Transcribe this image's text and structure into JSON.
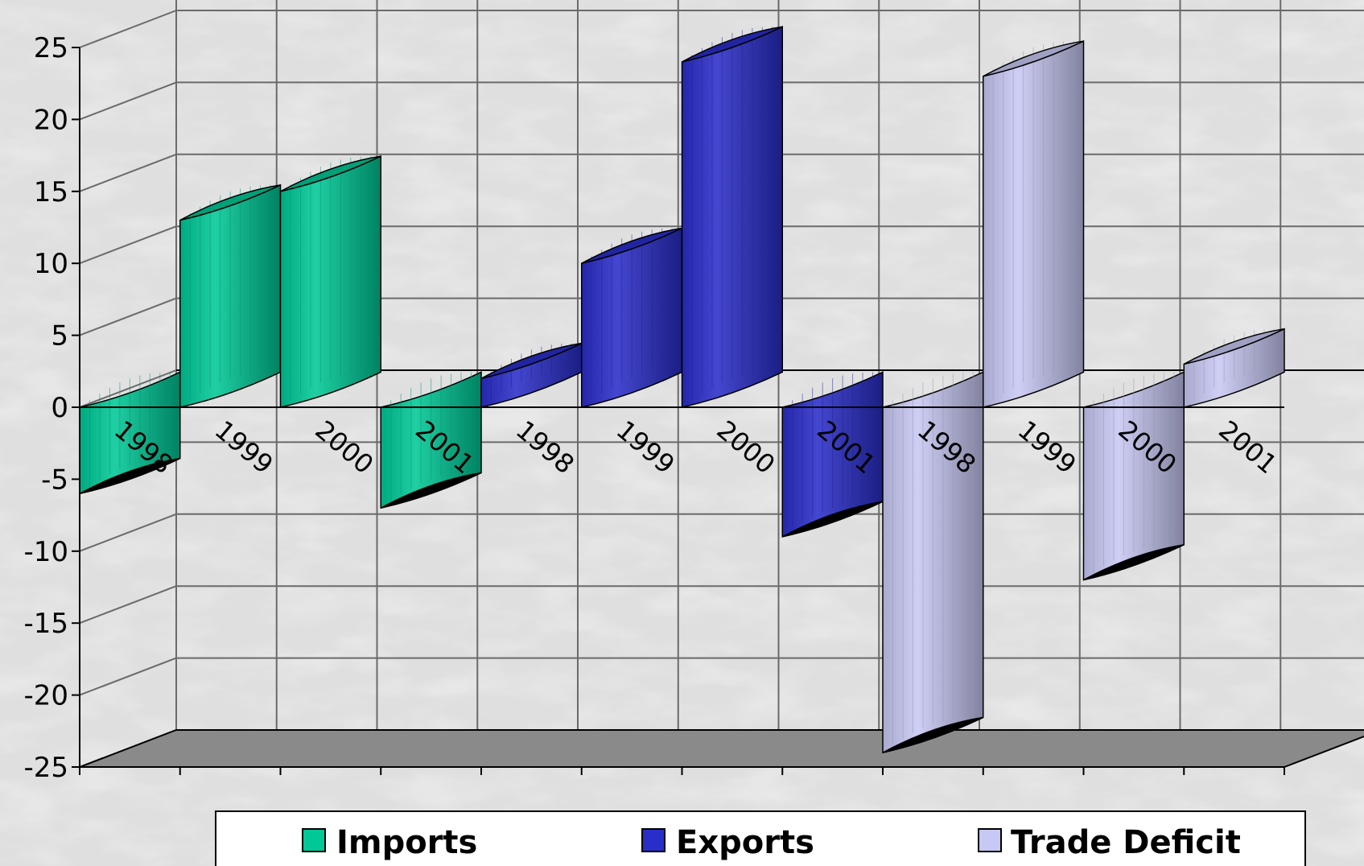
{
  "chart_data": {
    "type": "bar",
    "title": "",
    "xlabel": "",
    "ylabel": "",
    "ylim": [
      -25,
      25
    ],
    "yticks": [
      25,
      20,
      15,
      10,
      5,
      0,
      -5,
      -10,
      -15,
      -20,
      -25
    ],
    "groups": [
      {
        "name": "Imports",
        "color": "#00c896",
        "categories": [
          "1998",
          "1999",
          "2000",
          "2001"
        ],
        "values": [
          -6,
          13,
          15,
          -7
        ]
      },
      {
        "name": "Exports",
        "color": "#2a2ec8",
        "categories": [
          "1998",
          "1999",
          "2000",
          "2001"
        ],
        "values": [
          2,
          10,
          24,
          -9
        ]
      },
      {
        "name": "Trade Deficit",
        "color": "#c8c8f4",
        "categories": [
          "1998",
          "1999",
          "2000",
          "2001"
        ],
        "values": [
          -24,
          23,
          -12,
          3
        ]
      }
    ],
    "legend": {
      "position": "bottom",
      "entries": [
        {
          "label": "Imports",
          "color": "#00c896"
        },
        {
          "label": "Exports",
          "color": "#2a2ec8"
        },
        {
          "label": "Trade Deficit",
          "color": "#c8c8f4"
        }
      ]
    },
    "grid": true,
    "style": "3d-cylinder",
    "background": "marble"
  }
}
